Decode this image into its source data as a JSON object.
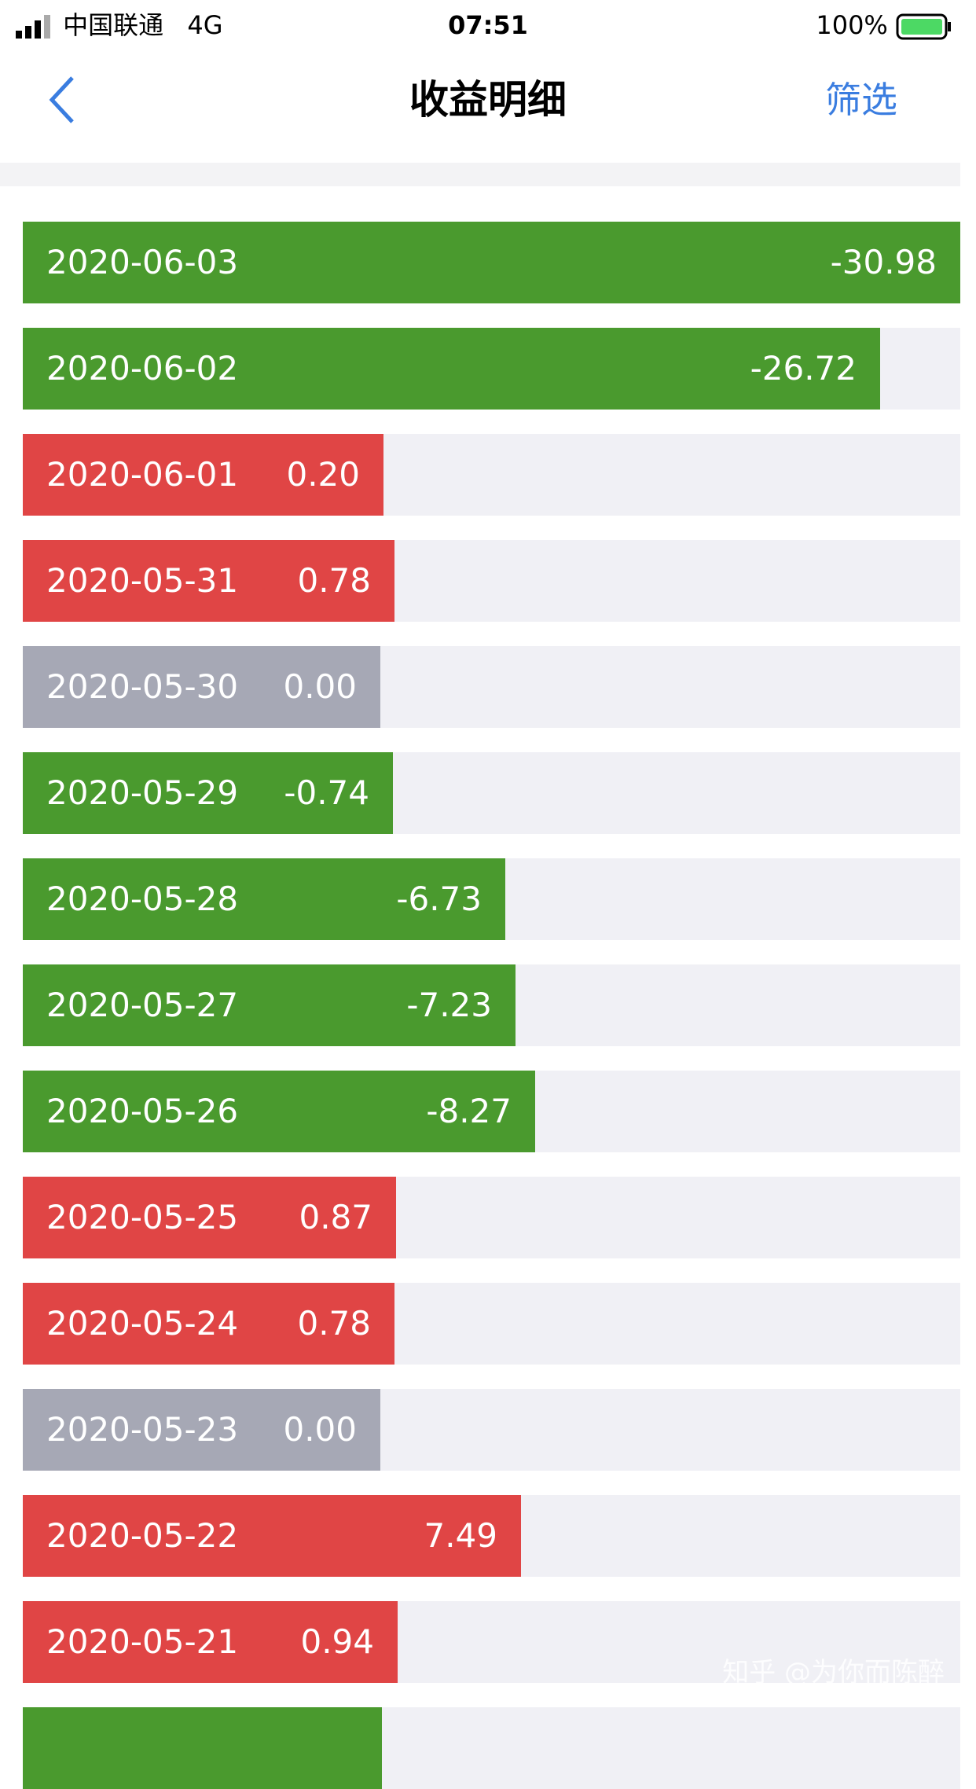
{
  "status_bar": {
    "carrier": "中国联通",
    "network": "4G",
    "time": "07:51",
    "battery": "100%"
  },
  "nav": {
    "title": "收益明细",
    "action": "筛选"
  },
  "rows": [
    {
      "date": "2020-06-03",
      "value": "-30.98"
    },
    {
      "date": "2020-06-02",
      "value": "-26.72"
    },
    {
      "date": "2020-06-01",
      "value": "0.20"
    },
    {
      "date": "2020-05-31",
      "value": "0.78"
    },
    {
      "date": "2020-05-30",
      "value": "0.00"
    },
    {
      "date": "2020-05-29",
      "value": "-0.74"
    },
    {
      "date": "2020-05-28",
      "value": "-6.73"
    },
    {
      "date": "2020-05-27",
      "value": "-7.23"
    },
    {
      "date": "2020-05-26",
      "value": "-8.27"
    },
    {
      "date": "2020-05-25",
      "value": "0.87"
    },
    {
      "date": "2020-05-24",
      "value": "0.78"
    },
    {
      "date": "2020-05-23",
      "value": "0.00"
    },
    {
      "date": "2020-05-22",
      "value": "7.49"
    },
    {
      "date": "2020-05-21",
      "value": "0.94"
    }
  ],
  "watermark": "知乎 @为你而陈醉"
}
